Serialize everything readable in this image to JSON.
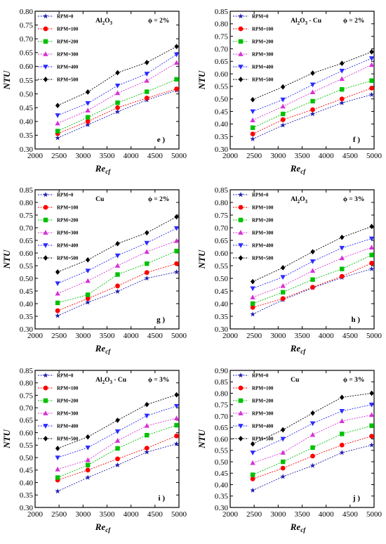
{
  "series_style": {
    "colors": [
      "#1f1fb0",
      "#ff0000",
      "#00c000",
      "#d633d6",
      "#2b2bff",
      "#000000"
    ],
    "markers": [
      "star",
      "circle",
      "square",
      "triangle-up",
      "triangle-down",
      "diamond"
    ]
  },
  "chart_data": [
    {
      "type": "scatter",
      "panel": "e )",
      "material": [
        "Al",
        "2",
        "O",
        "3",
        ""
      ],
      "phi": "ϕ = 2%",
      "xlabel": "Re",
      "xlabel_sub": "cf",
      "ylabel": "NTU",
      "xlim": [
        2000,
        5000
      ],
      "ylim": [
        0.3,
        0.8
      ],
      "xticks": [
        "2000",
        "2500",
        "3000",
        "3500",
        "4000",
        "4500",
        "5000"
      ],
      "yticks": [
        "0.30",
        "0.35",
        "0.40",
        "0.45",
        "0.50",
        "0.55",
        "0.60",
        "0.65",
        "0.70",
        "0.75",
        "0.80"
      ],
      "x": [
        2470,
        3100,
        3720,
        4330,
        4950
      ],
      "series": [
        {
          "name": "RPM=0",
          "values": [
            0.34,
            0.388,
            0.435,
            0.478,
            0.513
          ]
        },
        {
          "name": "RPM=100",
          "values": [
            0.356,
            0.4,
            0.45,
            0.485,
            0.518
          ]
        },
        {
          "name": "RPM=200",
          "values": [
            0.365,
            0.415,
            0.468,
            0.508,
            0.553
          ]
        },
        {
          "name": "RPM=300",
          "values": [
            0.393,
            0.44,
            0.503,
            0.548,
            0.613
          ]
        },
        {
          "name": "RPM=400",
          "values": [
            0.422,
            0.466,
            0.53,
            0.573,
            0.643
          ]
        },
        {
          "name": "RPM=500",
          "values": [
            0.458,
            0.507,
            0.577,
            0.614,
            0.672
          ]
        }
      ]
    },
    {
      "type": "scatter",
      "panel": "f )",
      "material": [
        "Al",
        "2",
        "O",
        "3",
        " - Cu"
      ],
      "phi": "ϕ = 2%",
      "xlabel": "Re",
      "xlabel_sub": "cf",
      "ylabel": "NTU",
      "xlim": [
        2000,
        5000
      ],
      "ylim": [
        0.3,
        0.85
      ],
      "xticks": [
        "2000",
        "2500",
        "3000",
        "3500",
        "4000",
        "4500",
        "5000"
      ],
      "yticks": [
        "0.30",
        "0.35",
        "0.40",
        "0.45",
        "0.50",
        "0.55",
        "0.60",
        "0.65",
        "0.70",
        "0.75",
        "0.80",
        "0.85"
      ],
      "x": [
        2470,
        3100,
        3720,
        4330,
        4950
      ],
      "series": [
        {
          "name": "RPM=0",
          "values": [
            0.34,
            0.395,
            0.44,
            0.484,
            0.517
          ]
        },
        {
          "name": "RPM=100",
          "values": [
            0.36,
            0.417,
            0.457,
            0.5,
            0.543
          ]
        },
        {
          "name": "RPM=200",
          "values": [
            0.385,
            0.44,
            0.491,
            0.538,
            0.573
          ]
        },
        {
          "name": "RPM=300",
          "values": [
            0.415,
            0.47,
            0.527,
            0.58,
            0.636
          ]
        },
        {
          "name": "RPM=400",
          "values": [
            0.45,
            0.497,
            0.557,
            0.612,
            0.662
          ]
        },
        {
          "name": "RPM=500",
          "values": [
            0.497,
            0.548,
            0.603,
            0.642,
            0.688
          ]
        }
      ]
    },
    {
      "type": "scatter",
      "panel": "g )",
      "material": [
        "Cu",
        "",
        "",
        "",
        ""
      ],
      "phi": "ϕ = 2%",
      "xlabel": "Re",
      "xlabel_sub": "cf",
      "ylabel": "NTU",
      "xlim": [
        2000,
        5000
      ],
      "ylim": [
        0.3,
        0.85
      ],
      "xticks": [
        "2000",
        "2500",
        "3000",
        "3500",
        "4000",
        "4500",
        "5000"
      ],
      "yticks": [
        "0.30",
        "0.35",
        "0.40",
        "0.45",
        "0.50",
        "0.55",
        "0.60",
        "0.65",
        "0.70",
        "0.75",
        "0.80",
        "0.85"
      ],
      "x": [
        2470,
        3100,
        3720,
        4330,
        4950
      ],
      "series": [
        {
          "name": "RPM=0",
          "values": [
            0.352,
            0.405,
            0.448,
            0.5,
            0.525
          ]
        },
        {
          "name": "RPM=100",
          "values": [
            0.372,
            0.42,
            0.47,
            0.523,
            0.558
          ]
        },
        {
          "name": "RPM=200",
          "values": [
            0.403,
            0.435,
            0.515,
            0.558,
            0.608
          ]
        },
        {
          "name": "RPM=300",
          "values": [
            0.44,
            0.49,
            0.55,
            0.605,
            0.648
          ]
        },
        {
          "name": "RPM=400",
          "values": [
            0.48,
            0.53,
            0.59,
            0.64,
            0.698
          ]
        },
        {
          "name": "RPM=500",
          "values": [
            0.525,
            0.573,
            0.637,
            0.68,
            0.743
          ]
        }
      ]
    },
    {
      "type": "scatter",
      "panel": "h )",
      "material": [
        "Al",
        "2",
        "O",
        "3",
        ""
      ],
      "phi": "ϕ = 3%",
      "xlabel": "Re",
      "xlabel_sub": "cf",
      "ylabel": "NTU",
      "xlim": [
        2000,
        5000
      ],
      "ylim": [
        0.3,
        0.85
      ],
      "xticks": [
        "2000",
        "2500",
        "3000",
        "3500",
        "4000",
        "4500",
        "5000"
      ],
      "yticks": [
        "0.30",
        "0.35",
        "0.40",
        "0.45",
        "0.50",
        "0.55",
        "0.60",
        "0.65",
        "0.70",
        "0.75",
        "0.80",
        "0.85"
      ],
      "x": [
        2470,
        3100,
        3720,
        4330,
        4950
      ],
      "series": [
        {
          "name": "RPM=0",
          "values": [
            0.358,
            0.415,
            0.462,
            0.503,
            0.537
          ]
        },
        {
          "name": "RPM=100",
          "values": [
            0.385,
            0.42,
            0.465,
            0.508,
            0.56
          ]
        },
        {
          "name": "RPM=200",
          "values": [
            0.4,
            0.445,
            0.495,
            0.537,
            0.592
          ]
        },
        {
          "name": "RPM=300",
          "values": [
            0.425,
            0.47,
            0.53,
            0.58,
            0.622
          ]
        },
        {
          "name": "RPM=400",
          "values": [
            0.46,
            0.505,
            0.567,
            0.62,
            0.657
          ]
        },
        {
          "name": "RPM=500",
          "values": [
            0.487,
            0.542,
            0.605,
            0.662,
            0.705
          ]
        }
      ]
    },
    {
      "type": "scatter",
      "panel": "i )",
      "material": [
        "Al",
        "2",
        "O",
        "3",
        " - Cu"
      ],
      "phi": "ϕ = 3%",
      "xlabel": "Re",
      "xlabel_sub": "cf",
      "ylabel": "NTU",
      "xlim": [
        2000,
        5000
      ],
      "ylim": [
        0.3,
        0.85
      ],
      "xticks": [
        "2000",
        "2500",
        "3000",
        "3500",
        "4000",
        "4500",
        "5000"
      ],
      "yticks": [
        "0.30",
        "0.35",
        "0.40",
        "0.45",
        "0.50",
        "0.55",
        "0.60",
        "0.65",
        "0.70",
        "0.75",
        "0.80",
        "0.85"
      ],
      "x": [
        2470,
        3100,
        3720,
        4330,
        4950
      ],
      "series": [
        {
          "name": "RPM=0",
          "values": [
            0.365,
            0.42,
            0.47,
            0.522,
            0.555
          ]
        },
        {
          "name": "RPM=100",
          "values": [
            0.41,
            0.45,
            0.495,
            0.538,
            0.587
          ]
        },
        {
          "name": "RPM=200",
          "values": [
            0.42,
            0.47,
            0.537,
            0.59,
            0.63
          ]
        },
        {
          "name": "RPM=300",
          "values": [
            0.453,
            0.49,
            0.568,
            0.628,
            0.658
          ]
        },
        {
          "name": "RPM=400",
          "values": [
            0.5,
            0.54,
            0.605,
            0.668,
            0.707
          ]
        },
        {
          "name": "RPM=500",
          "values": [
            0.537,
            0.583,
            0.65,
            0.713,
            0.752
          ]
        }
      ]
    },
    {
      "type": "scatter",
      "panel": "j )",
      "material": [
        "Cu",
        "",
        "",
        "",
        ""
      ],
      "phi": "ϕ = 3%",
      "xlabel": "Re",
      "xlabel_sub": "cf",
      "ylabel": "NTU",
      "xlim": [
        2000,
        5000
      ],
      "ylim": [
        0.3,
        0.9
      ],
      "xticks": [
        "2000",
        "2500",
        "3000",
        "3500",
        "4000",
        "4500",
        "5000"
      ],
      "yticks": [
        "0.30",
        "0.35",
        "0.40",
        "0.45",
        "0.50",
        "0.55",
        "0.60",
        "0.65",
        "0.70",
        "0.75",
        "0.80",
        "0.85",
        "0.90"
      ],
      "x": [
        2470,
        3100,
        3720,
        4330,
        4950
      ],
      "series": [
        {
          "name": "RPM=0",
          "values": [
            0.375,
            0.435,
            0.483,
            0.54,
            0.573
          ]
        },
        {
          "name": "RPM=100",
          "values": [
            0.425,
            0.472,
            0.525,
            0.573,
            0.612
          ]
        },
        {
          "name": "RPM=200",
          "values": [
            0.443,
            0.5,
            0.562,
            0.622,
            0.658
          ]
        },
        {
          "name": "RPM=300",
          "values": [
            0.495,
            0.54,
            0.618,
            0.678,
            0.705
          ]
        },
        {
          "name": "RPM=400",
          "values": [
            0.54,
            0.6,
            0.668,
            0.722,
            0.75
          ]
        },
        {
          "name": "RPM=500",
          "values": [
            0.578,
            0.64,
            0.713,
            0.782,
            0.8
          ]
        }
      ]
    }
  ]
}
